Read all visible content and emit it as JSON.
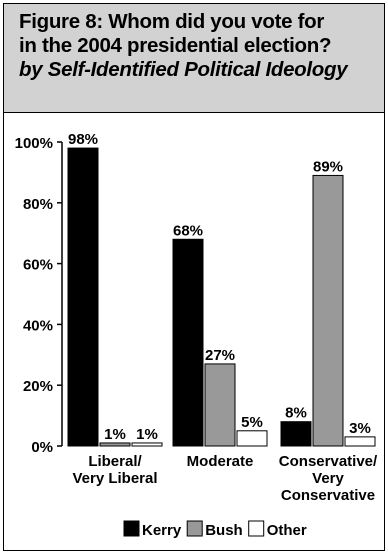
{
  "chart_data": {
    "type": "bar",
    "title": "Figure 8: Whom did you vote for in the 2004 presidential election?",
    "title_lines": [
      "Figure 8: Whom did you vote for",
      "in the 2004 presidential election?"
    ],
    "subtitle": "by Self-Identified Political Ideology",
    "categories": [
      [
        "Liberal/",
        "Very Liberal"
      ],
      [
        "Moderate"
      ],
      [
        "Conservative/",
        "Very",
        "Conservative"
      ]
    ],
    "series": [
      {
        "name": "Kerry",
        "values": [
          98,
          68,
          8
        ],
        "labels": [
          "98%",
          "68%",
          "8%"
        ],
        "color": "#000000"
      },
      {
        "name": "Bush",
        "values": [
          1,
          27,
          89
        ],
        "labels": [
          "1%",
          "27%",
          "89%"
        ],
        "color": "#999999"
      },
      {
        "name": "Other",
        "values": [
          1,
          5,
          3
        ],
        "labels": [
          "1%",
          "5%",
          "3%"
        ],
        "color": "#ffffff"
      }
    ],
    "yticks": [
      "0%",
      "20%",
      "40%",
      "60%",
      "80%",
      "100%"
    ],
    "ylim": [
      0,
      100
    ],
    "grid": false,
    "legend": "bottom"
  }
}
